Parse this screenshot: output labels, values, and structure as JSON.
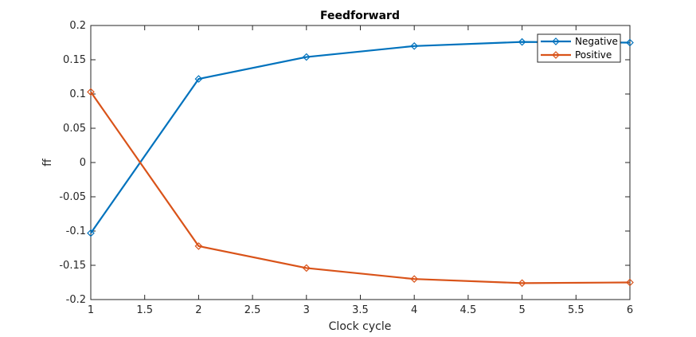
{
  "chart_data": {
    "type": "line",
    "title": "Feedforward",
    "xlabel": "Clock cycle",
    "ylabel": "ff",
    "xlim": [
      1,
      6
    ],
    "ylim": [
      -0.2,
      0.2
    ],
    "xticks": [
      "1",
      "1.5",
      "2",
      "2.5",
      "3",
      "3.5",
      "4",
      "4.5",
      "5",
      "5.5",
      "6"
    ],
    "yticks": [
      "-0.2",
      "-0.15",
      "-0.1",
      "-0.05",
      "0",
      "0.05",
      "0.1",
      "0.15",
      "0.2"
    ],
    "x": [
      1,
      2,
      3,
      4,
      5,
      6
    ],
    "series": [
      {
        "name": "Negative",
        "color": "#0072BD",
        "marker": "diamond",
        "values": [
          -0.103,
          0.122,
          0.154,
          0.17,
          0.176,
          0.175
        ]
      },
      {
        "name": "Positive",
        "color": "#D95319",
        "marker": "diamond",
        "values": [
          0.103,
          -0.122,
          -0.154,
          -0.17,
          -0.176,
          -0.175
        ]
      }
    ],
    "grid": false,
    "legend_position": "top-right"
  }
}
